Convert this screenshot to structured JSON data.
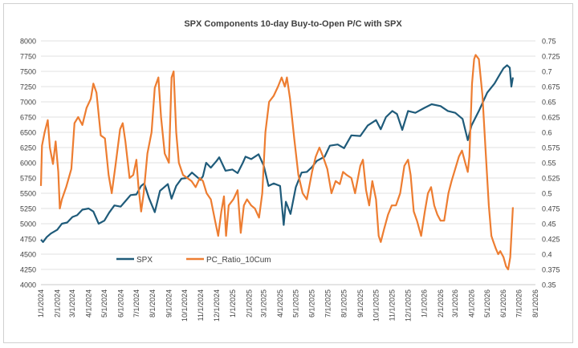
{
  "chart_data": {
    "type": "line",
    "title": "SPX Components 10-day Buy-to-Open P/C with SPX",
    "x_tick_labels": [
      "1/1/2024",
      "2/1/2024",
      "3/1/2024",
      "4/1/2024",
      "5/1/2024",
      "6/1/2024",
      "7/1/2024",
      "8/1/2024",
      "9/1/2024",
      "10/1/2024",
      "11/1/2024",
      "12/1/2024",
      "1/1/2025",
      "2/1/2025",
      "3/1/2025",
      "4/1/2025",
      "5/1/2025",
      "6/1/2025",
      "7/1/2025",
      "8/1/2025",
      "9/1/2025",
      "10/1/2025",
      "11/1/2025",
      "12/1/2025",
      "1/1/2026",
      "2/1/2026",
      "3/1/2026",
      "4/1/2026",
      "5/1/2026",
      "6/1/2026",
      "7/1/2026",
      "8/1/2026"
    ],
    "y_left": {
      "ticks": [
        4000,
        4250,
        4500,
        4750,
        5000,
        5250,
        5500,
        5750,
        6000,
        6250,
        6500,
        6750,
        7000,
        7250,
        7500,
        7750,
        8000
      ],
      "range": [
        4000,
        8000
      ]
    },
    "y_right": {
      "ticks": [
        "0.35",
        "0.375",
        "0.4",
        "0.425",
        "0.45",
        "0.475",
        "0.5",
        "0.525",
        "0.55",
        "0.575",
        "0.6",
        "0.625",
        "0.65",
        "0.675",
        "0.7",
        "0.725",
        "0.75"
      ],
      "range": [
        0.35,
        0.75
      ]
    },
    "legend_placement": "lower-left inside plot",
    "series": [
      {
        "name": "SPX",
        "axis": "left",
        "color": "#1f5b7a",
        "points": [
          [
            "2024-01-01",
            4740
          ],
          [
            "2024-01-05",
            4700
          ],
          [
            "2024-01-12",
            4780
          ],
          [
            "2024-01-20",
            4840
          ],
          [
            "2024-02-01",
            4900
          ],
          [
            "2024-02-10",
            5000
          ],
          [
            "2024-02-20",
            5020
          ],
          [
            "2024-03-01",
            5110
          ],
          [
            "2024-03-10",
            5140
          ],
          [
            "2024-03-20",
            5230
          ],
          [
            "2024-04-01",
            5250
          ],
          [
            "2024-04-10",
            5200
          ],
          [
            "2024-04-20",
            5000
          ],
          [
            "2024-05-01",
            5050
          ],
          [
            "2024-05-10",
            5180
          ],
          [
            "2024-05-20",
            5300
          ],
          [
            "2024-06-01",
            5280
          ],
          [
            "2024-06-10",
            5370
          ],
          [
            "2024-06-20",
            5470
          ],
          [
            "2024-07-01",
            5480
          ],
          [
            "2024-07-10",
            5620
          ],
          [
            "2024-07-16",
            5660
          ],
          [
            "2024-07-25",
            5420
          ],
          [
            "2024-08-05",
            5190
          ],
          [
            "2024-08-15",
            5540
          ],
          [
            "2024-08-30",
            5650
          ],
          [
            "2024-09-06",
            5410
          ],
          [
            "2024-09-15",
            5620
          ],
          [
            "2024-09-25",
            5740
          ],
          [
            "2024-10-05",
            5750
          ],
          [
            "2024-10-15",
            5840
          ],
          [
            "2024-10-31",
            5720
          ],
          [
            "2024-11-05",
            5780
          ],
          [
            "2024-11-11",
            6000
          ],
          [
            "2024-11-20",
            5920
          ],
          [
            "2024-12-01",
            6030
          ],
          [
            "2024-12-06",
            6090
          ],
          [
            "2024-12-18",
            5870
          ],
          [
            "2024-12-31",
            5890
          ],
          [
            "2025-01-10",
            5830
          ],
          [
            "2025-01-20",
            6000
          ],
          [
            "2025-01-25",
            6100
          ],
          [
            "2025-02-05",
            6060
          ],
          [
            "2025-02-19",
            6140
          ],
          [
            "2025-03-01",
            5950
          ],
          [
            "2025-03-10",
            5620
          ],
          [
            "2025-03-20",
            5660
          ],
          [
            "2025-04-01",
            5620
          ],
          [
            "2025-04-08",
            4980
          ],
          [
            "2025-04-12",
            5360
          ],
          [
            "2025-04-21",
            5160
          ],
          [
            "2025-05-01",
            5600
          ],
          [
            "2025-05-12",
            5840
          ],
          [
            "2025-05-22",
            5850
          ],
          [
            "2025-06-01",
            5930
          ],
          [
            "2025-06-10",
            6030
          ],
          [
            "2025-06-25",
            6100
          ],
          [
            "2025-07-05",
            6280
          ],
          [
            "2025-07-20",
            6300
          ],
          [
            "2025-08-01",
            6240
          ],
          [
            "2025-08-15",
            6450
          ],
          [
            "2025-09-01",
            6440
          ],
          [
            "2025-09-15",
            6610
          ],
          [
            "2025-10-01",
            6700
          ],
          [
            "2025-10-10",
            6550
          ],
          [
            "2025-10-20",
            6750
          ],
          [
            "2025-11-01",
            6850
          ],
          [
            "2025-11-10",
            6800
          ],
          [
            "2025-11-20",
            6540
          ],
          [
            "2025-12-01",
            6850
          ],
          [
            "2025-12-15",
            6820
          ],
          [
            "2026-01-01",
            6900
          ],
          [
            "2026-01-15",
            6960
          ],
          [
            "2026-02-01",
            6930
          ],
          [
            "2026-02-15",
            6850
          ],
          [
            "2026-03-01",
            6820
          ],
          [
            "2026-03-15",
            6720
          ],
          [
            "2026-03-25",
            6370
          ],
          [
            "2026-04-01",
            6610
          ],
          [
            "2026-04-15",
            6850
          ],
          [
            "2026-05-01",
            7150
          ],
          [
            "2026-05-15",
            7300
          ],
          [
            "2026-05-25",
            7450
          ],
          [
            "2026-06-01",
            7550
          ],
          [
            "2026-06-08",
            7600
          ],
          [
            "2026-06-13",
            7560
          ],
          [
            "2026-06-16",
            7250
          ],
          [
            "2026-06-19",
            7400
          ]
        ]
      },
      {
        "name": "PC_Ratio_10Cum",
        "axis": "right",
        "color": "#ed7d31",
        "points": [
          [
            "2024-01-01",
            0.512
          ],
          [
            "2024-01-03",
            0.578
          ],
          [
            "2024-01-08",
            0.6
          ],
          [
            "2024-01-14",
            0.62
          ],
          [
            "2024-01-18",
            0.575
          ],
          [
            "2024-01-24",
            0.548
          ],
          [
            "2024-01-29",
            0.585
          ],
          [
            "2024-02-03",
            0.535
          ],
          [
            "2024-02-06",
            0.475
          ],
          [
            "2024-02-10",
            0.49
          ],
          [
            "2024-02-18",
            0.51
          ],
          [
            "2024-02-28",
            0.54
          ],
          [
            "2024-03-05",
            0.615
          ],
          [
            "2024-03-12",
            0.625
          ],
          [
            "2024-03-20",
            0.612
          ],
          [
            "2024-03-28",
            0.64
          ],
          [
            "2024-04-05",
            0.655
          ],
          [
            "2024-04-10",
            0.68
          ],
          [
            "2024-04-16",
            0.665
          ],
          [
            "2024-04-24",
            0.595
          ],
          [
            "2024-05-02",
            0.59
          ],
          [
            "2024-05-09",
            0.53
          ],
          [
            "2024-05-15",
            0.5
          ],
          [
            "2024-05-22",
            0.545
          ],
          [
            "2024-05-31",
            0.605
          ],
          [
            "2024-06-05",
            0.615
          ],
          [
            "2024-06-10",
            0.585
          ],
          [
            "2024-06-18",
            0.525
          ],
          [
            "2024-06-25",
            0.53
          ],
          [
            "2024-07-01",
            0.555
          ],
          [
            "2024-07-05",
            0.51
          ],
          [
            "2024-07-10",
            0.47
          ],
          [
            "2024-07-15",
            0.5
          ],
          [
            "2024-07-22",
            0.565
          ],
          [
            "2024-07-30",
            0.6
          ],
          [
            "2024-08-05",
            0.673
          ],
          [
            "2024-08-12",
            0.69
          ],
          [
            "2024-08-17",
            0.625
          ],
          [
            "2024-08-24",
            0.565
          ],
          [
            "2024-09-01",
            0.55
          ],
          [
            "2024-09-06",
            0.69
          ],
          [
            "2024-09-10",
            0.7
          ],
          [
            "2024-09-15",
            0.6
          ],
          [
            "2024-09-20",
            0.55
          ],
          [
            "2024-09-28",
            0.53
          ],
          [
            "2024-10-06",
            0.525
          ],
          [
            "2024-10-14",
            0.52
          ],
          [
            "2024-10-22",
            0.51
          ],
          [
            "2024-10-30",
            0.525
          ],
          [
            "2024-11-05",
            0.52
          ],
          [
            "2024-11-12",
            0.5
          ],
          [
            "2024-11-20",
            0.49
          ],
          [
            "2024-11-28",
            0.455
          ],
          [
            "2024-12-04",
            0.43
          ],
          [
            "2024-12-10",
            0.47
          ],
          [
            "2024-12-15",
            0.495
          ],
          [
            "2024-12-19",
            0.43
          ],
          [
            "2024-12-24",
            0.48
          ],
          [
            "2025-01-02",
            0.49
          ],
          [
            "2025-01-10",
            0.505
          ],
          [
            "2025-01-16",
            0.435
          ],
          [
            "2025-01-22",
            0.48
          ],
          [
            "2025-01-28",
            0.49
          ],
          [
            "2025-02-05",
            0.48
          ],
          [
            "2025-02-12",
            0.475
          ],
          [
            "2025-02-20",
            0.46
          ],
          [
            "2025-02-26",
            0.5
          ],
          [
            "2025-03-04",
            0.6
          ],
          [
            "2025-03-11",
            0.65
          ],
          [
            "2025-03-20",
            0.66
          ],
          [
            "2025-03-28",
            0.675
          ],
          [
            "2025-04-04",
            0.69
          ],
          [
            "2025-04-10",
            0.675
          ],
          [
            "2025-04-14",
            0.69
          ],
          [
            "2025-04-20",
            0.655
          ],
          [
            "2025-04-28",
            0.59
          ],
          [
            "2025-05-06",
            0.53
          ],
          [
            "2025-05-14",
            0.5
          ],
          [
            "2025-05-22",
            0.49
          ],
          [
            "2025-06-01",
            0.535
          ],
          [
            "2025-06-08",
            0.56
          ],
          [
            "2025-06-15",
            0.575
          ],
          [
            "2025-06-22",
            0.56
          ],
          [
            "2025-06-30",
            0.54
          ],
          [
            "2025-07-08",
            0.5
          ],
          [
            "2025-07-16",
            0.52
          ],
          [
            "2025-07-24",
            0.515
          ],
          [
            "2025-07-30",
            0.535
          ],
          [
            "2025-08-06",
            0.53
          ],
          [
            "2025-08-15",
            0.525
          ],
          [
            "2025-08-22",
            0.5
          ],
          [
            "2025-09-01",
            0.545
          ],
          [
            "2025-09-06",
            0.555
          ],
          [
            "2025-09-12",
            0.505
          ],
          [
            "2025-09-18",
            0.48
          ],
          [
            "2025-09-24",
            0.52
          ],
          [
            "2025-10-01",
            0.49
          ],
          [
            "2025-10-06",
            0.43
          ],
          [
            "2025-10-10",
            0.42
          ],
          [
            "2025-10-16",
            0.44
          ],
          [
            "2025-10-24",
            0.465
          ],
          [
            "2025-10-31",
            0.48
          ],
          [
            "2025-11-08",
            0.48
          ],
          [
            "2025-11-16",
            0.5
          ],
          [
            "2025-11-24",
            0.545
          ],
          [
            "2025-12-01",
            0.555
          ],
          [
            "2025-12-06",
            0.53
          ],
          [
            "2025-12-12",
            0.47
          ],
          [
            "2025-12-18",
            0.455
          ],
          [
            "2025-12-26",
            0.43
          ],
          [
            "2026-01-02",
            0.47
          ],
          [
            "2026-01-08",
            0.5
          ],
          [
            "2026-01-14",
            0.51
          ],
          [
            "2026-01-20",
            0.48
          ],
          [
            "2026-01-26",
            0.465
          ],
          [
            "2026-02-01",
            0.455
          ],
          [
            "2026-02-08",
            0.455
          ],
          [
            "2026-02-16",
            0.5
          ],
          [
            "2026-02-22",
            0.52
          ],
          [
            "2026-03-01",
            0.54
          ],
          [
            "2026-03-08",
            0.56
          ],
          [
            "2026-03-14",
            0.57
          ],
          [
            "2026-03-20",
            0.55
          ],
          [
            "2026-03-25",
            0.535
          ],
          [
            "2026-03-28",
            0.56
          ],
          [
            "2026-04-02",
            0.68
          ],
          [
            "2026-04-06",
            0.72
          ],
          [
            "2026-04-09",
            0.727
          ],
          [
            "2026-04-15",
            0.72
          ],
          [
            "2026-04-22",
            0.66
          ],
          [
            "2026-04-28",
            0.57
          ],
          [
            "2026-05-04",
            0.48
          ],
          [
            "2026-05-09",
            0.43
          ],
          [
            "2026-05-13",
            0.42
          ],
          [
            "2026-05-17",
            0.41
          ],
          [
            "2026-05-22",
            0.4
          ],
          [
            "2026-05-26",
            0.405
          ],
          [
            "2026-06-01",
            0.395
          ],
          [
            "2026-06-06",
            0.38
          ],
          [
            "2026-06-10",
            0.375
          ],
          [
            "2026-06-14",
            0.395
          ],
          [
            "2026-06-19",
            0.477
          ]
        ]
      }
    ]
  }
}
